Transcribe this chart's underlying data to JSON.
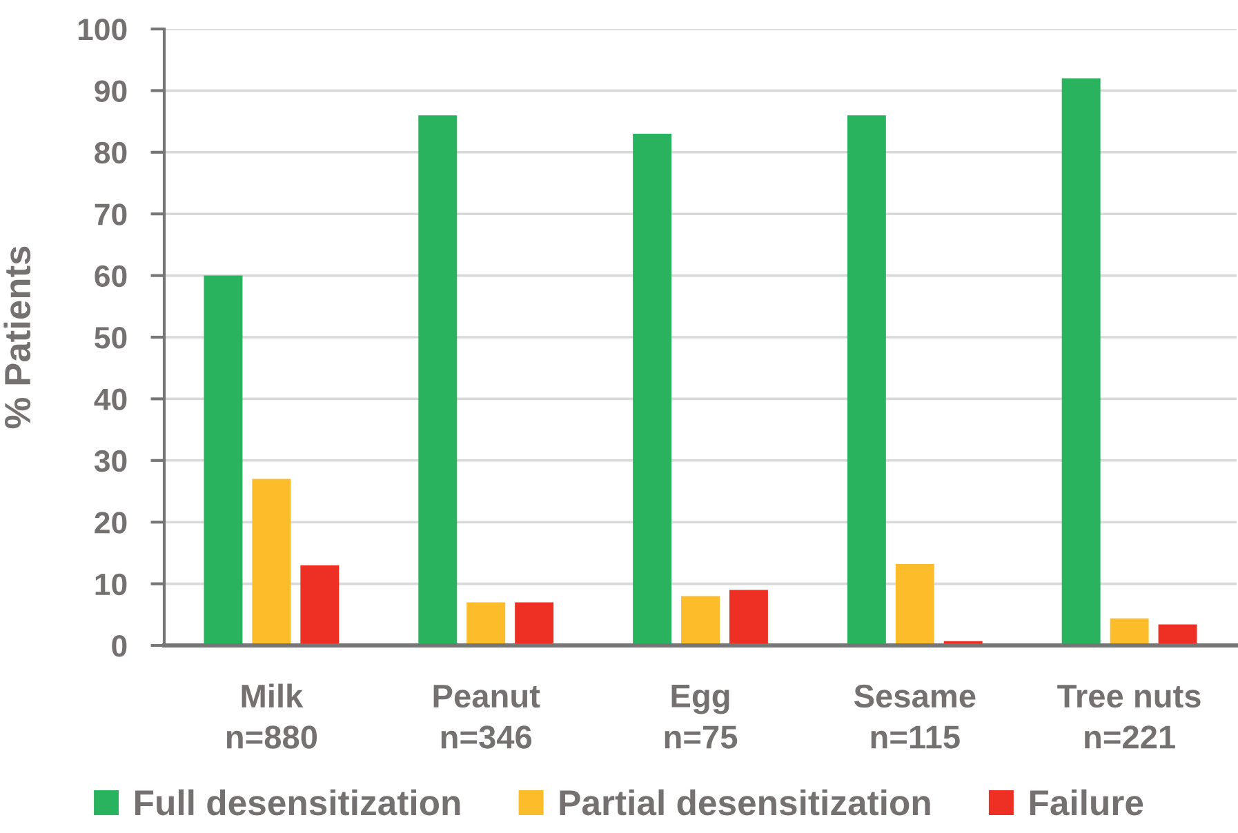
{
  "chart_data": {
    "type": "bar",
    "ylabel": "% Patients",
    "categories": [
      "Milk\nn=880",
      "Peanut\nn=346",
      "Egg\nn=75",
      "Sesame\nn=115",
      "Tree nuts\nn=221"
    ],
    "series": [
      {
        "name": "Full desensitization",
        "color": "#2ab35e",
        "values": [
          60,
          86,
          83,
          86,
          92
        ]
      },
      {
        "name": "Partial desensitization",
        "color": "#fdbd2b",
        "values": [
          27,
          7,
          8,
          13.2,
          4.4
        ]
      },
      {
        "name": "Failure",
        "color": "#ee2f24",
        "values": [
          13,
          7,
          9,
          0.7,
          3.4
        ]
      }
    ],
    "ylim": [
      0,
      100
    ],
    "yticks": [
      0,
      10,
      20,
      30,
      40,
      50,
      60,
      70,
      80,
      90,
      100
    ],
    "grid": "y",
    "legend": "bottom"
  }
}
